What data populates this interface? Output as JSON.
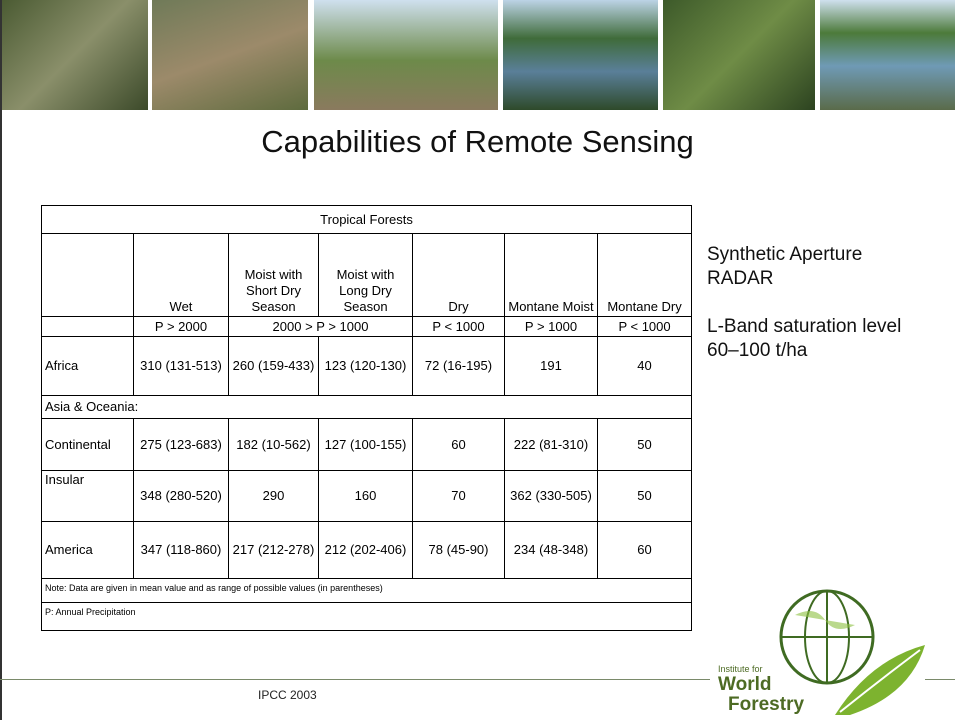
{
  "title": "Capabilities of Remote Sensing",
  "table": {
    "caption": "Tropical Forests",
    "columns": [
      "Wet",
      "Moist with Short Dry Season",
      "Moist with Long Dry Season",
      "Dry",
      "Montane Moist",
      "Montane Dry"
    ],
    "precipitation": [
      "P > 2000",
      "2000 > P > 1000",
      "P < 1000",
      "P > 1000",
      "P < 1000"
    ],
    "rows": [
      {
        "label": "Africa",
        "cells": [
          "310 (131-513)",
          "260 (159-433)",
          "123 (120-130)",
          "72 (16-195)",
          "191",
          "40"
        ]
      },
      {
        "group": "Asia & Oceania:"
      },
      {
        "label": "Continental",
        "cells": [
          "275 (123-683)",
          "182 (10-562)",
          "127 (100-155)",
          "60",
          "222 (81-310)",
          "50"
        ]
      },
      {
        "label": "Insular",
        "cells": [
          "348 (280-520)",
          "290",
          "160",
          "70",
          "362 (330-505)",
          "50"
        ]
      },
      {
        "label": "America",
        "cells": [
          "347 (118-860)",
          "217 (212-278)",
          "212 (202-406)",
          "78 (45-90)",
          "234 (48-348)",
          "60"
        ]
      }
    ],
    "notes": [
      "Note: Data are given in mean value and as range of possible values (in parentheses)",
      "P: Annual Precipitation"
    ]
  },
  "sidebar": [
    [
      "Synthetic Aperture",
      "RADAR"
    ],
    [
      "L-Band saturation level",
      "60–100 t/ha"
    ]
  ],
  "footer": {
    "source": "IPCC 2003"
  },
  "logo": {
    "line1": "Institute for",
    "line2": "World",
    "line3": "Forestry"
  }
}
